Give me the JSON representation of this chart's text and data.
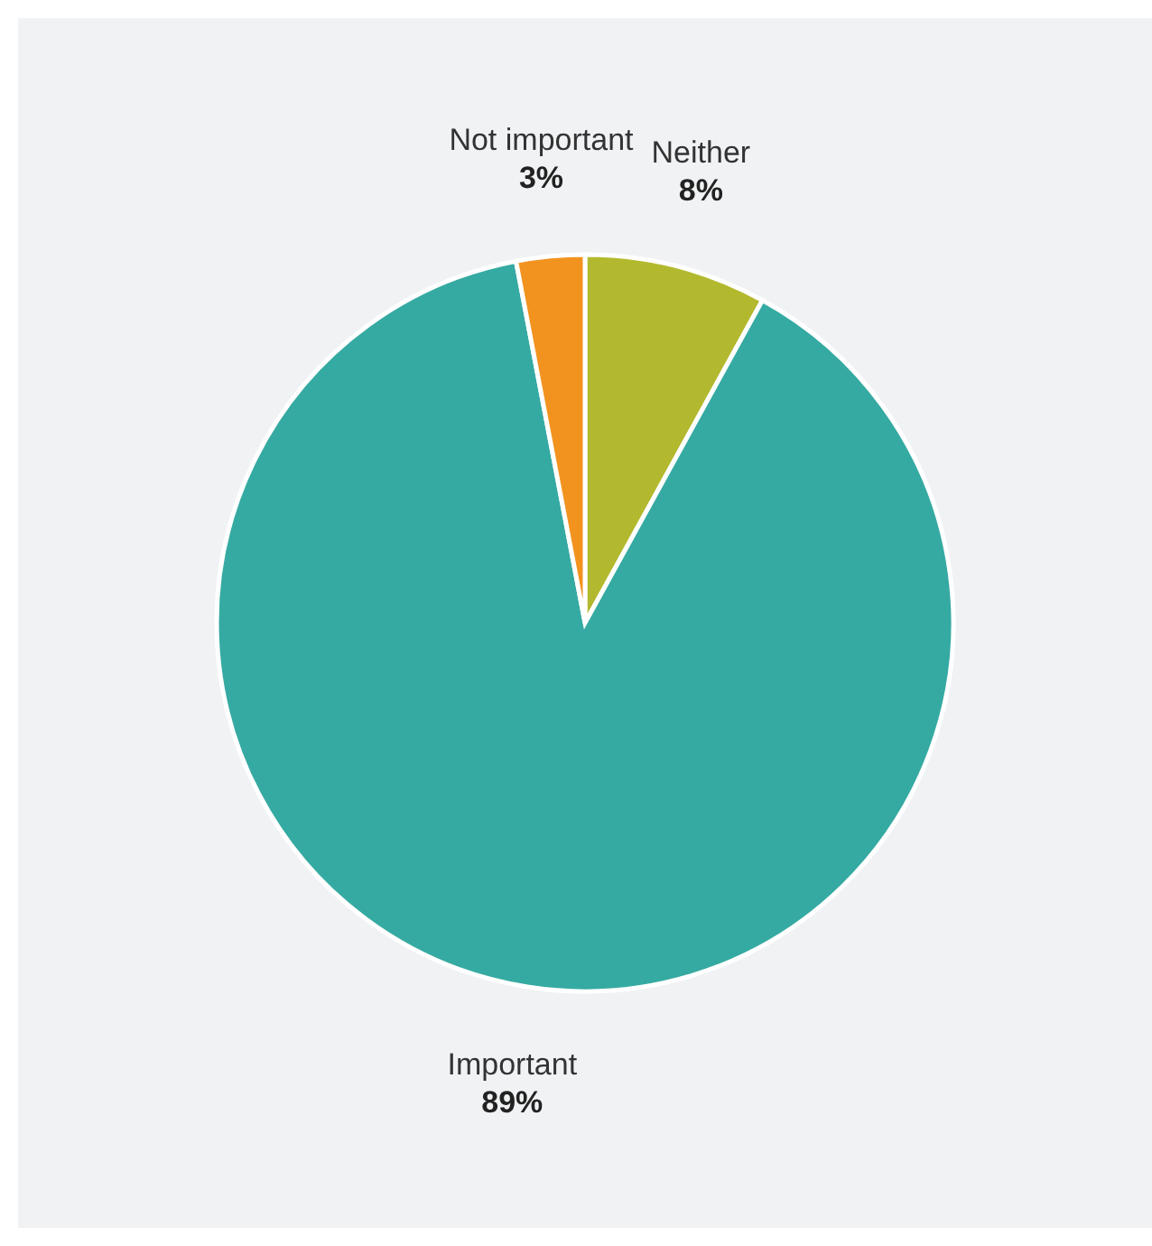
{
  "chart_data": {
    "type": "pie",
    "categories": [
      "Neither",
      "Important",
      "Not important"
    ],
    "values": [
      8,
      89,
      3
    ],
    "colors": [
      "#b3b92e",
      "#35aaa2",
      "#f29320"
    ],
    "value_labels": [
      "8%",
      "89%",
      "3%"
    ]
  }
}
